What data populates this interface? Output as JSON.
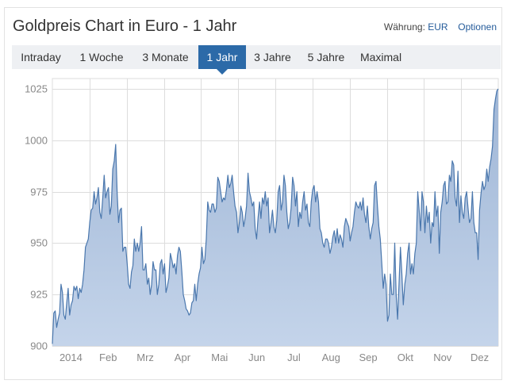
{
  "header": {
    "title": "Goldpreis Chart in Euro - 1 Jahr",
    "currency_label": "Währung:",
    "currency_value": "EUR",
    "options_label": "Optionen"
  },
  "tabs": [
    {
      "label": "Intraday",
      "active": false
    },
    {
      "label": "1 Woche",
      "active": false
    },
    {
      "label": "3 Monate",
      "active": false
    },
    {
      "label": "1 Jahr",
      "active": true
    },
    {
      "label": "3 Jahre",
      "active": false
    },
    {
      "label": "5 Jahre",
      "active": false
    },
    {
      "label": "Maximal",
      "active": false
    }
  ],
  "colors": {
    "line": "#4a77ad",
    "fill_top": "#9fb6d6",
    "fill_bottom": "#c4d4ea",
    "grid": "#dddddd",
    "active_tab": "#2c6aa8"
  },
  "chart_data": {
    "type": "area",
    "title": "",
    "xlabel": "",
    "ylabel": "",
    "ylim": [
      900,
      1030
    ],
    "yticks": [
      900,
      925,
      950,
      975,
      1000,
      1025
    ],
    "month_labels": [
      "2014",
      "Feb",
      "Mrz",
      "Apr",
      "Mai",
      "Jun",
      "Jul",
      "Aug",
      "Sep",
      "Okt",
      "Nov",
      "Dez"
    ],
    "grid": true,
    "legend": "none",
    "series": [
      {
        "values": [
          901,
          916,
          917,
          909,
          913,
          916,
          930,
          926,
          915,
          913,
          921,
          928,
          915,
          920,
          922,
          929,
          927,
          929,
          923,
          928,
          926,
          930,
          937,
          948,
          950,
          952,
          960,
          966,
          967,
          975,
          969,
          972,
          977,
          965,
          962,
          972,
          983,
          972,
          975,
          977,
          964,
          968,
          986,
          990,
          998,
          975,
          960,
          966,
          967,
          946,
          948,
          948,
          940,
          930,
          928,
          936,
          939,
          952,
          946,
          950,
          946,
          950,
          958,
          937,
          937,
          940,
          930,
          933,
          925,
          930,
          941,
          937,
          937,
          925,
          930,
          940,
          942,
          935,
          940,
          926,
          929,
          933,
          945,
          942,
          938,
          940,
          935,
          944,
          948,
          946,
          936,
          925,
          922,
          918,
          917,
          915,
          916,
          921,
          922,
          930,
          922,
          930,
          935,
          938,
          948,
          940,
          942,
          952,
          970,
          966,
          965,
          969,
          969,
          965,
          967,
          982,
          980,
          975,
          970,
          972,
          971,
          976,
          983,
          977,
          979,
          983,
          975,
          968,
          965,
          955,
          960,
          968,
          965,
          958,
          962,
          968,
          984,
          975,
          972,
          968,
          970,
          957,
          952,
          962,
          970,
          962,
          972,
          969,
          975,
          968,
          972,
          955,
          960,
          966,
          958,
          955,
          961,
          975,
          978,
          966,
          970,
          983,
          978,
          965,
          957,
          960,
          967,
          982,
          978,
          968,
          975,
          958,
          965,
          962,
          970,
          975,
          966,
          969,
          960,
          958,
          970,
          976,
          978,
          970,
          975,
          970,
          957,
          955,
          950,
          948,
          952,
          952,
          950,
          945,
          948,
          953,
          956,
          950,
          957,
          950,
          954,
          952,
          948,
          958,
          962,
          960,
          958,
          951,
          955,
          958,
          965,
          970,
          968,
          967,
          970,
          966,
          972,
          964,
          960,
          968,
          958,
          952,
          957,
          960,
          978,
          980,
          968,
          958,
          952,
          940,
          928,
          935,
          930,
          912,
          915,
          935,
          925,
          925,
          950,
          925,
          913,
          930,
          948,
          935,
          920,
          930,
          935,
          945,
          950,
          935,
          940,
          935,
          945,
          950,
          975,
          966,
          956,
          975,
          970,
          955,
          968,
          960,
          965,
          950,
          960,
          958,
          975,
          963,
          968,
          945,
          965,
          970,
          978,
          980,
          969,
          970,
          983,
          980,
          990,
          988,
          972,
          968,
          985,
          960,
          973,
          965,
          962,
          972,
          975,
          967,
          960,
          962,
          975,
          960,
          955,
          955,
          942,
          966,
          974,
          980,
          976,
          978,
          986,
          980,
          987,
          991,
          997,
          1015,
          1020,
          1024,
          1025
        ]
      }
    ]
  }
}
